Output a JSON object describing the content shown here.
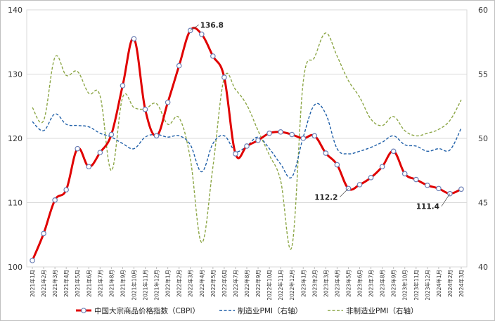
{
  "chart_data": {
    "type": "line",
    "x": [
      "2021年1月",
      "2021年2月",
      "2021年3月",
      "2021年4月",
      "2021年5月",
      "2021年6月",
      "2021年7月",
      "2021年8月",
      "2021年9月",
      "2021年10月",
      "2021年11月",
      "2021年12月",
      "2022年1月",
      "2022年2月",
      "2022年3月",
      "2022年4月",
      "2022年5月",
      "2022年6月",
      "2022年7月",
      "2022年8月",
      "2022年9月",
      "2022年10月",
      "2022年11月",
      "2022年12月",
      "2023年1月",
      "2023年2月",
      "2023年3月",
      "2023年4月",
      "2023年5月",
      "2023年6月",
      "2023年7月",
      "2023年8月",
      "2023年9月",
      "2023年10月",
      "2023年11月",
      "2023年12月",
      "2024年1月",
      "2024年2月",
      "2024年3月"
    ],
    "y_left": {
      "min": 100,
      "max": 140,
      "ticks": [
        100,
        110,
        120,
        130,
        140
      ]
    },
    "y_right": {
      "min": 40,
      "max": 60,
      "ticks": [
        40,
        45,
        50,
        55,
        60
      ]
    },
    "grid": "horizontal",
    "legend_position": "bottom",
    "series": [
      {
        "name": "中国大宗商品价格指数（CBPI）",
        "axis": "left",
        "color": "#e00000",
        "style": "solid-markers",
        "values": [
          101.0,
          105.2,
          110.4,
          112.0,
          118.4,
          115.6,
          117.8,
          120.6,
          128.2,
          135.5,
          124.5,
          120.4,
          125.6,
          131.3,
          136.8,
          136.2,
          132.8,
          129.5,
          117.6,
          118.8,
          119.7,
          120.8,
          121.0,
          120.6,
          120.0,
          120.4,
          117.7,
          115.9,
          112.2,
          112.8,
          113.9,
          115.6,
          118.0,
          114.5,
          113.6,
          112.7,
          112.2,
          111.4,
          112.1
        ]
      },
      {
        "name": "制造业PMI（右轴）",
        "axis": "right",
        "color": "#1f5fa8",
        "style": "dashed",
        "values": [
          51.3,
          50.6,
          51.9,
          51.1,
          51.0,
          50.9,
          50.4,
          50.1,
          49.6,
          49.2,
          50.1,
          50.3,
          50.1,
          50.2,
          49.5,
          47.4,
          49.6,
          50.2,
          49.0,
          49.4,
          50.1,
          49.2,
          48.0,
          47.0,
          50.1,
          52.6,
          51.9,
          49.2,
          48.8,
          49.0,
          49.3,
          49.7,
          50.2,
          49.5,
          49.4,
          49.0,
          49.2,
          49.1,
          50.8
        ]
      },
      {
        "name": "非制造业PMI（右轴）",
        "axis": "right",
        "color": "#8ca646",
        "style": "dashed",
        "values": [
          52.4,
          51.4,
          56.3,
          54.9,
          55.2,
          53.5,
          53.3,
          47.5,
          53.2,
          52.4,
          52.3,
          52.7,
          51.1,
          51.6,
          48.4,
          41.9,
          47.8,
          54.7,
          53.8,
          52.6,
          50.6,
          48.7,
          46.7,
          41.6,
          54.4,
          56.3,
          58.2,
          56.4,
          54.5,
          53.2,
          51.5,
          51.0,
          51.7,
          50.6,
          50.2,
          50.4,
          50.7,
          51.4,
          53.0
        ]
      }
    ],
    "annotations": [
      {
        "series": 0,
        "index": 14,
        "text": "136.8"
      },
      {
        "series": 0,
        "index": 28,
        "text": "112.2"
      },
      {
        "series": 0,
        "index": 37,
        "text": "111.4"
      }
    ]
  }
}
